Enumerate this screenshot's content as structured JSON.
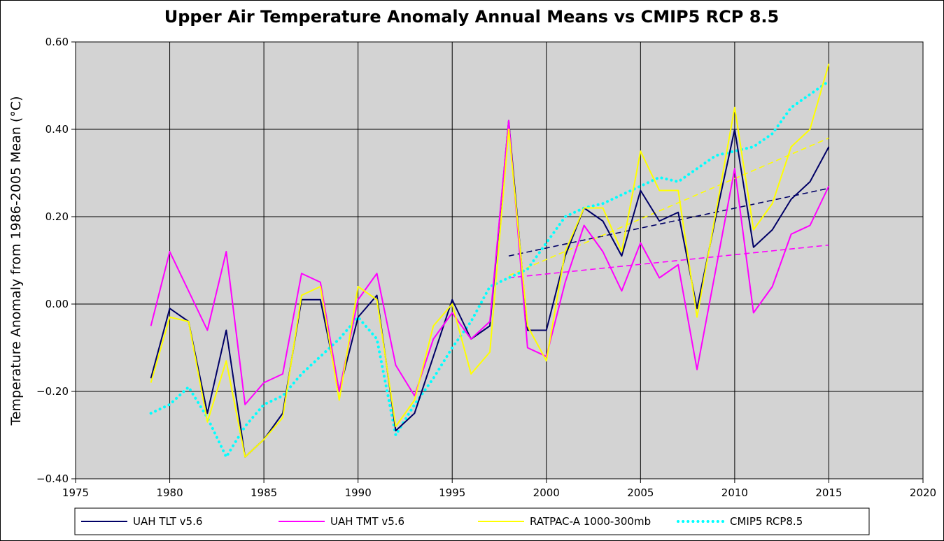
{
  "chart_data": {
    "type": "line",
    "title": "Upper Air Temperature Anomaly Annual Means vs CMIP5 RCP 8.5",
    "xlabel": "",
    "ylabel": "Temperature Anomaly from 1986-2005 Mean (°C)",
    "xlim": [
      1975,
      2020
    ],
    "ylim": [
      -0.4,
      0.6
    ],
    "x_ticks": [
      1975,
      1980,
      1985,
      1990,
      1995,
      2000,
      2005,
      2010,
      2015,
      2020
    ],
    "x_tick_labels": [
      "1975",
      "1980",
      "1985",
      "1990",
      "1995",
      "2000",
      "2005",
      "2010",
      "2015",
      "2020"
    ],
    "y_ticks": [
      -0.4,
      -0.2,
      0.0,
      0.2,
      0.4,
      0.6
    ],
    "y_tick_labels": [
      "−0.40",
      "−0.20",
      "0.00",
      "0.20",
      "0.40",
      "0.60"
    ],
    "grid": true,
    "legend_position": "bottom",
    "plot_background": "#d3d3d3",
    "series": [
      {
        "name": "UAH TLT v5.6",
        "color": "#000066",
        "style": "solid",
        "x": [
          1979,
          1980,
          1981,
          1982,
          1983,
          1984,
          1985,
          1986,
          1987,
          1988,
          1989,
          1990,
          1991,
          1992,
          1993,
          1994,
          1995,
          1996,
          1997,
          1998,
          1999,
          2000,
          2001,
          2002,
          2003,
          2004,
          2005,
          2006,
          2007,
          2008,
          2009,
          2010,
          2011,
          2012,
          2013,
          2014,
          2015
        ],
        "values": [
          -0.17,
          -0.01,
          -0.04,
          -0.25,
          -0.06,
          -0.35,
          -0.31,
          -0.25,
          0.01,
          0.01,
          -0.2,
          -0.03,
          0.02,
          -0.29,
          -0.25,
          -0.12,
          0.01,
          -0.08,
          -0.05,
          0.42,
          -0.06,
          -0.06,
          0.11,
          0.22,
          0.19,
          0.11,
          0.26,
          0.19,
          0.21,
          -0.01,
          0.2,
          0.4,
          0.13,
          0.17,
          0.24,
          0.28,
          0.36
        ]
      },
      {
        "name": "UAH TMT v5.6",
        "color": "#ff00ff",
        "style": "solid",
        "x": [
          1979,
          1980,
          1981,
          1982,
          1983,
          1984,
          1985,
          1986,
          1987,
          1988,
          1989,
          1990,
          1991,
          1992,
          1993,
          1994,
          1995,
          1996,
          1997,
          1998,
          1999,
          2000,
          2001,
          2002,
          2003,
          2004,
          2005,
          2006,
          2007,
          2008,
          2009,
          2010,
          2011,
          2012,
          2013,
          2014,
          2015
        ],
        "values": [
          -0.05,
          0.12,
          0.03,
          -0.06,
          0.12,
          -0.23,
          -0.18,
          -0.16,
          0.07,
          0.05,
          -0.2,
          0.01,
          0.07,
          -0.14,
          -0.21,
          -0.08,
          -0.02,
          -0.08,
          -0.04,
          0.42,
          -0.1,
          -0.12,
          0.05,
          0.18,
          0.12,
          0.03,
          0.14,
          0.06,
          0.09,
          -0.15,
          0.08,
          0.31,
          -0.02,
          0.04,
          0.16,
          0.18,
          0.27
        ]
      },
      {
        "name": "RATPAC-A 1000-300mb",
        "color": "#ffff00",
        "style": "solid",
        "x": [
          1979,
          1980,
          1981,
          1982,
          1983,
          1984,
          1985,
          1986,
          1987,
          1988,
          1989,
          1990,
          1991,
          1992,
          1993,
          1994,
          1995,
          1996,
          1997,
          1998,
          1999,
          2000,
          2001,
          2002,
          2003,
          2004,
          2005,
          2006,
          2007,
          2008,
          2009,
          2010,
          2011,
          2012,
          2013,
          2014,
          2015
        ],
        "values": [
          -0.18,
          -0.03,
          -0.04,
          -0.27,
          -0.13,
          -0.35,
          -0.31,
          -0.26,
          0.02,
          0.04,
          -0.22,
          0.04,
          0.01,
          -0.28,
          -0.22,
          -0.05,
          0.0,
          -0.16,
          -0.11,
          0.4,
          -0.05,
          -0.13,
          0.12,
          0.22,
          0.22,
          0.12,
          0.35,
          0.26,
          0.26,
          -0.03,
          0.21,
          0.45,
          0.17,
          0.23,
          0.36,
          0.4,
          0.55
        ]
      },
      {
        "name": "CMIP5 RCP8.5",
        "color": "#00ffff",
        "style": "dotted",
        "x": [
          1979,
          1980,
          1981,
          1982,
          1983,
          1984,
          1985,
          1986,
          1987,
          1988,
          1989,
          1990,
          1991,
          1992,
          1993,
          1994,
          1995,
          1996,
          1997,
          1998,
          1999,
          2000,
          2001,
          2002,
          2003,
          2004,
          2005,
          2006,
          2007,
          2008,
          2009,
          2010,
          2011,
          2012,
          2013,
          2014,
          2015
        ],
        "values": [
          -0.25,
          -0.23,
          -0.19,
          -0.26,
          -0.35,
          -0.28,
          -0.23,
          -0.21,
          -0.16,
          -0.12,
          -0.08,
          -0.03,
          -0.08,
          -0.3,
          -0.23,
          -0.17,
          -0.1,
          -0.04,
          0.04,
          0.06,
          0.08,
          0.14,
          0.2,
          0.22,
          0.23,
          0.25,
          0.27,
          0.29,
          0.28,
          0.31,
          0.34,
          0.35,
          0.36,
          0.39,
          0.45,
          0.48,
          0.51
        ]
      }
    ],
    "trendlines": [
      {
        "series": "UAH TLT v5.6",
        "color": "#000066",
        "style": "dashed",
        "x": [
          1998,
          2015
        ],
        "values": [
          0.11,
          0.265
        ]
      },
      {
        "series": "UAH TMT v5.6",
        "color": "#ff00ff",
        "style": "dashed",
        "x": [
          1998,
          2015
        ],
        "values": [
          0.06,
          0.135
        ]
      },
      {
        "series": "RATPAC-A 1000-300mb",
        "color": "#ffff00",
        "style": "dashed",
        "x": [
          1998,
          2015
        ],
        "values": [
          0.065,
          0.38
        ]
      }
    ]
  }
}
